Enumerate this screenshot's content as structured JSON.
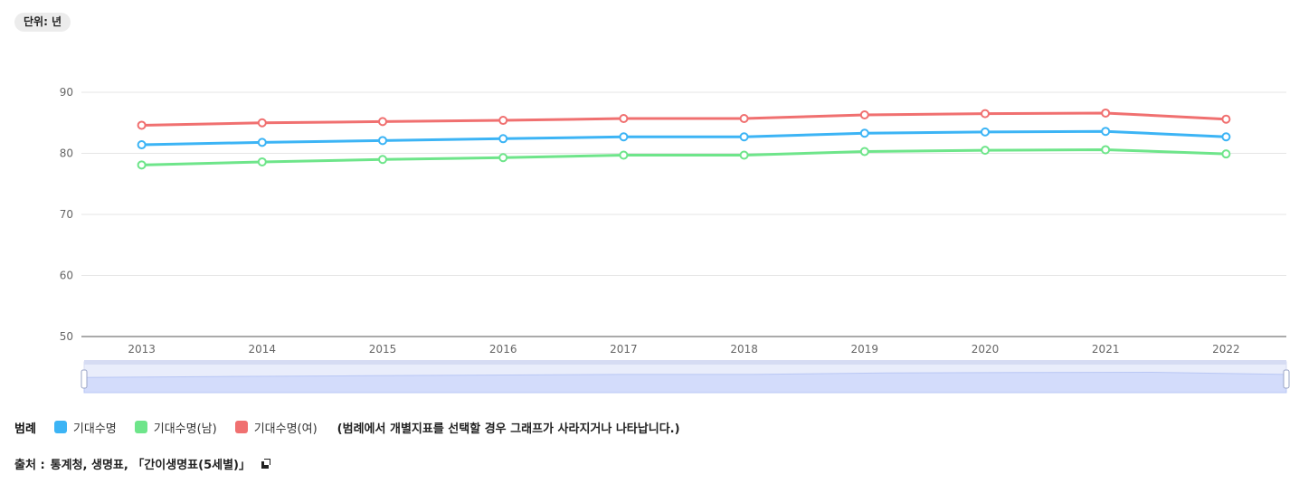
{
  "unit_label": "단위: 년",
  "chart_data": {
    "type": "line",
    "title": "",
    "xlabel": "",
    "ylabel": "",
    "ylim": [
      50,
      90
    ],
    "yticks": [
      50,
      60,
      70,
      80,
      90
    ],
    "grid": true,
    "categories": [
      "2013",
      "2014",
      "2015",
      "2016",
      "2017",
      "2018",
      "2019",
      "2020",
      "2021",
      "2022"
    ],
    "series": [
      {
        "name": "기대수명",
        "color": "#3cb4f5",
        "values": [
          81.4,
          81.8,
          82.1,
          82.4,
          82.7,
          82.7,
          83.3,
          83.5,
          83.6,
          82.7
        ]
      },
      {
        "name": "기대수명(남)",
        "color": "#6ee58a",
        "values": [
          78.1,
          78.6,
          79.0,
          79.3,
          79.7,
          79.7,
          80.3,
          80.5,
          80.6,
          79.9
        ]
      },
      {
        "name": "기대수명(여)",
        "color": "#f07070",
        "values": [
          84.6,
          85.0,
          85.2,
          85.4,
          85.7,
          85.7,
          86.3,
          86.5,
          86.6,
          85.6
        ]
      }
    ]
  },
  "legend": {
    "title": "범례",
    "note": "(범례에서 개별지표를 선택할 경우 그래프가 사라지거나 나타납니다.)"
  },
  "source": {
    "label": "출처 :",
    "text": "통계청, 생명표, 「간이생명표(5세별)」"
  }
}
